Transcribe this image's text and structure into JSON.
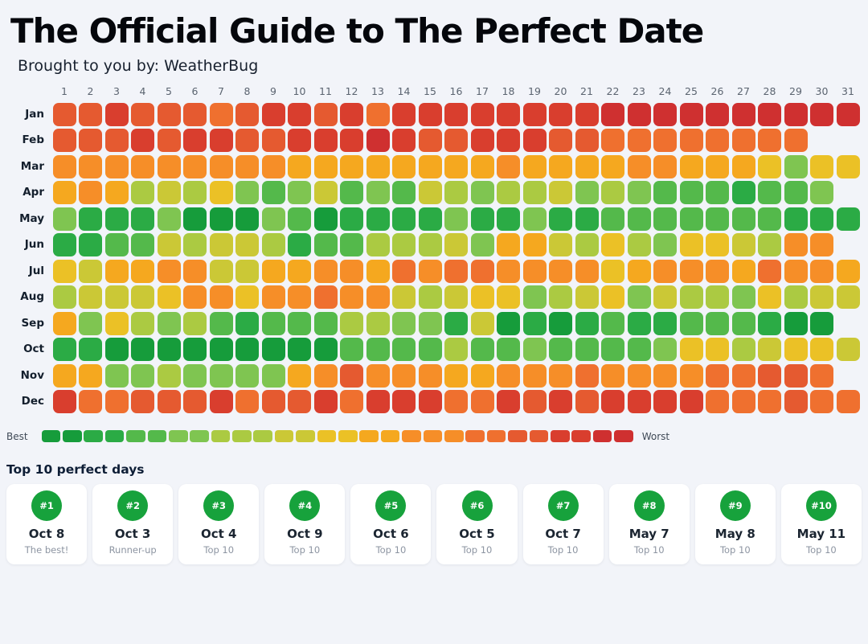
{
  "page": {
    "background": "#f2f4f9"
  },
  "header": {
    "title": "The Official Guide to The Perfect Date",
    "subtitle": "Brought to you by: WeatherBug"
  },
  "chart_data": {
    "type": "heatmap",
    "title": "The Official Guide to The Perfect Date",
    "description": "Calendar heatmap of date quality for every day of the year; level 0 = best (dark green), level 12 = worst (dark red)",
    "day_numbers": [
      1,
      2,
      3,
      4,
      5,
      6,
      7,
      8,
      9,
      10,
      11,
      12,
      13,
      14,
      15,
      16,
      17,
      18,
      19,
      20,
      21,
      22,
      23,
      24,
      25,
      26,
      27,
      28,
      29,
      30,
      31
    ],
    "palette": [
      "#169c3b",
      "#2bab45",
      "#54b94b",
      "#7fc551",
      "#abca42",
      "#cbc836",
      "#ebc126",
      "#f5a81f",
      "#f68e28",
      "#ef702f",
      "#e55a30",
      "#d93e2e",
      "#cf3030"
    ],
    "months": [
      {
        "name": "Jan",
        "days": 31,
        "levels": [
          10,
          10,
          11,
          10,
          10,
          10,
          9,
          10,
          11,
          11,
          10,
          11,
          9,
          11,
          11,
          11,
          11,
          11,
          11,
          11,
          11,
          12,
          12,
          12,
          12,
          12,
          12,
          12,
          12,
          12,
          12
        ]
      },
      {
        "name": "Feb",
        "days": 29,
        "levels": [
          10,
          10,
          10,
          11,
          10,
          11,
          11,
          10,
          10,
          11,
          11,
          11,
          12,
          11,
          10,
          10,
          11,
          11,
          11,
          10,
          10,
          9,
          9,
          9,
          9,
          9,
          9,
          9,
          9
        ]
      },
      {
        "name": "Mar",
        "days": 31,
        "levels": [
          8,
          8,
          8,
          8,
          8,
          8,
          8,
          8,
          8,
          7,
          7,
          7,
          7,
          7,
          7,
          7,
          7,
          8,
          7,
          7,
          7,
          7,
          8,
          8,
          7,
          7,
          7,
          6,
          3,
          6,
          6
        ]
      },
      {
        "name": "Apr",
        "days": 30,
        "levels": [
          7,
          8,
          7,
          4,
          5,
          4,
          6,
          3,
          2,
          3,
          5,
          2,
          3,
          2,
          5,
          4,
          3,
          4,
          4,
          5,
          3,
          4,
          3,
          2,
          2,
          2,
          1,
          2,
          2,
          3
        ]
      },
      {
        "name": "May",
        "days": 31,
        "levels": [
          3,
          1,
          1,
          1,
          3,
          0,
          0,
          0,
          3,
          2,
          0,
          1,
          1,
          1,
          1,
          3,
          1,
          1,
          3,
          1,
          1,
          2,
          2,
          2,
          2,
          2,
          2,
          2,
          1,
          1,
          1
        ]
      },
      {
        "name": "Jun",
        "days": 30,
        "levels": [
          1,
          1,
          2,
          2,
          5,
          4,
          5,
          5,
          4,
          1,
          2,
          2,
          4,
          4,
          4,
          5,
          3,
          7,
          7,
          5,
          4,
          6,
          4,
          3,
          6,
          6,
          5,
          4,
          8,
          8
        ]
      },
      {
        "name": "Jul",
        "days": 31,
        "levels": [
          6,
          5,
          7,
          7,
          8,
          8,
          5,
          5,
          7,
          7,
          8,
          8,
          7,
          9,
          8,
          9,
          9,
          8,
          8,
          8,
          8,
          6,
          7,
          8,
          8,
          8,
          7,
          9,
          8,
          8,
          7
        ]
      },
      {
        "name": "Aug",
        "days": 31,
        "levels": [
          4,
          5,
          5,
          5,
          6,
          8,
          8,
          6,
          8,
          8,
          9,
          8,
          8,
          5,
          4,
          5,
          6,
          6,
          3,
          4,
          5,
          6,
          3,
          5,
          4,
          4,
          3,
          6,
          4,
          5,
          5
        ]
      },
      {
        "name": "Sep",
        "days": 30,
        "levels": [
          7,
          3,
          6,
          4,
          3,
          4,
          2,
          1,
          2,
          2,
          2,
          4,
          4,
          3,
          3,
          1,
          5,
          0,
          1,
          0,
          1,
          2,
          1,
          1,
          2,
          2,
          2,
          1,
          0,
          0
        ]
      },
      {
        "name": "Oct",
        "days": 31,
        "levels": [
          1,
          1,
          0,
          0,
          0,
          0,
          0,
          0,
          0,
          0,
          0,
          2,
          2,
          2,
          2,
          4,
          2,
          2,
          3,
          2,
          2,
          2,
          2,
          3,
          6,
          6,
          4,
          5,
          6,
          6,
          5
        ]
      },
      {
        "name": "Nov",
        "days": 30,
        "levels": [
          7,
          7,
          3,
          3,
          4,
          3,
          3,
          3,
          3,
          7,
          8,
          10,
          8,
          8,
          8,
          7,
          7,
          8,
          8,
          8,
          9,
          8,
          8,
          8,
          8,
          9,
          9,
          10,
          10,
          9
        ]
      },
      {
        "name": "Dec",
        "days": 31,
        "levels": [
          11,
          9,
          9,
          10,
          10,
          10,
          11,
          9,
          10,
          10,
          11,
          9,
          11,
          11,
          11,
          9,
          9,
          11,
          10,
          11,
          10,
          11,
          11,
          11,
          11,
          9,
          9,
          9,
          10,
          9,
          9
        ]
      }
    ],
    "legend": {
      "best_label": "Best",
      "worst_label": "Worst",
      "steps": 28
    }
  },
  "top10": {
    "heading": "Top 10 perfect days",
    "badge_color": "#17a23c",
    "cards": [
      {
        "rank": "#1",
        "date": "Oct 8",
        "note": "The best!"
      },
      {
        "rank": "#2",
        "date": "Oct 3",
        "note": "Runner-up"
      },
      {
        "rank": "#3",
        "date": "Oct 4",
        "note": "Top 10"
      },
      {
        "rank": "#4",
        "date": "Oct 9",
        "note": "Top 10"
      },
      {
        "rank": "#5",
        "date": "Oct 6",
        "note": "Top 10"
      },
      {
        "rank": "#6",
        "date": "Oct 5",
        "note": "Top 10"
      },
      {
        "rank": "#7",
        "date": "Oct 7",
        "note": "Top 10"
      },
      {
        "rank": "#8",
        "date": "May 7",
        "note": "Top 10"
      },
      {
        "rank": "#9",
        "date": "May 8",
        "note": "Top 10"
      },
      {
        "rank": "#10",
        "date": "May 11",
        "note": "Top 10"
      }
    ]
  }
}
